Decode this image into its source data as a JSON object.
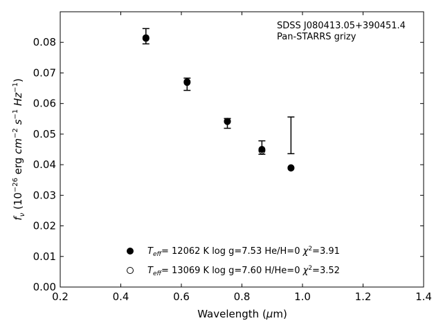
{
  "chart_data": {
    "type": "scatter",
    "xlabel": "Wavelength (μm)",
    "ylabel": "f_ν (10^−26 erg cm^−2 s^−1 Hz^−1)",
    "xlim": [
      0.2,
      1.4
    ],
    "ylim": [
      0.0,
      0.09
    ],
    "x_ticks": [
      "0.2",
      "0.4",
      "0.6",
      "0.8",
      "1.0",
      "1.2",
      "1.4"
    ],
    "y_ticks": [
      "0.00",
      "0.01",
      "0.02",
      "0.03",
      "0.04",
      "0.05",
      "0.06",
      "0.07",
      "0.08"
    ],
    "annotations": [
      "SDSS J080413.05+390451.4",
      "Pan-STARRS grizy"
    ],
    "observed": {
      "x": [
        0.483,
        0.619,
        0.752,
        0.866,
        0.962
      ],
      "y": [
        0.082,
        0.0663,
        0.0535,
        0.0456,
        0.0496
      ],
      "yerr": [
        0.0025,
        0.002,
        0.0016,
        0.0022,
        0.006
      ]
    },
    "series": [
      {
        "marker": "filled",
        "legend": {
          "teff_value": "= 12062 K",
          "logg": "log g=7.53",
          "comp": "He/H=0",
          "chi2": "=3.91"
        },
        "x": [
          0.483,
          0.619,
          0.752,
          0.866,
          0.962
        ],
        "y": [
          0.0815,
          0.0671,
          0.0542,
          0.045,
          0.039
        ]
      },
      {
        "marker": "open",
        "legend": {
          "teff_value": "= 13069 K",
          "logg": "log g=7.60",
          "comp": "H/He=0",
          "chi2": "=3.52"
        },
        "x": [
          0.483,
          0.619,
          0.752,
          0.866,
          0.962
        ],
        "y": [
          0.0813,
          0.0669,
          0.0541,
          0.0446,
          0.0389
        ]
      }
    ],
    "grid": false,
    "legend_position": "lower-center"
  }
}
